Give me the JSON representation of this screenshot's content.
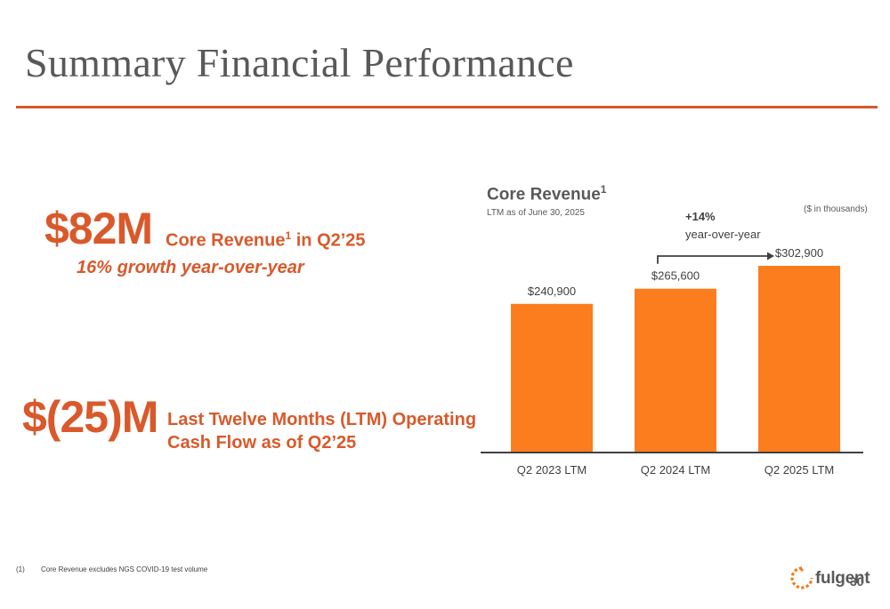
{
  "page": {
    "title": "Summary Financial Performance",
    "page_number": "30"
  },
  "kpi1": {
    "value": "$82M",
    "label": "Core Revenue",
    "label_sup": "1",
    "label_suffix": " in Q2’25",
    "subtext": "16% growth year-over-year"
  },
  "kpi2": {
    "value": "$(25)M",
    "label_line1": "Last Twelve Months (LTM) Operating",
    "label_line2": "Cash Flow as of Q2’25"
  },
  "chart_header": {
    "title": "Core Revenue",
    "title_sup": "1",
    "subtitle": "LTM as of June 30, 2025",
    "unit": "($ in thousands)",
    "growth_pct": "+14%",
    "growth_text": "year-over-year"
  },
  "chart_data": {
    "type": "bar",
    "categories": [
      "Q2 2023 LTM",
      "Q2 2024 LTM",
      "Q2 2025 LTM"
    ],
    "values": [
      240900,
      265600,
      302900
    ],
    "data_labels": [
      "$240,900",
      "$265,600",
      "$302,900"
    ],
    "ylim": [
      0,
      302900
    ],
    "grid": false,
    "bar_color": "#fb7d1e",
    "annotation": {
      "text": "+14% year-over-year",
      "from_category": "Q2 2024 LTM",
      "to_category": "Q2 2025 LTM"
    }
  },
  "footnote": {
    "number": "(1)",
    "text": "Core Revenue excludes NGS COVID-19 test volume"
  },
  "logo": {
    "text": "fulgent",
    "icon": "fulgent-logo-icon"
  },
  "colors": {
    "accent": "#d9592b",
    "bar": "#fb7d1e",
    "text_gray": "#595959"
  }
}
